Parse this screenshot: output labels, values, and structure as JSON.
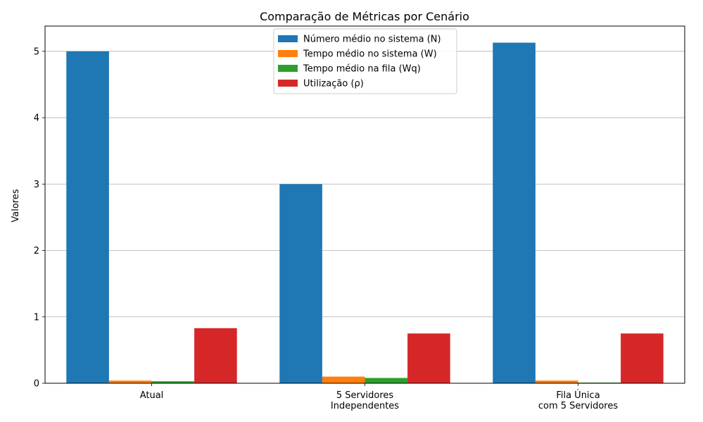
{
  "chart_data": {
    "type": "bar",
    "title": "Comparação de Métricas por Cenário",
    "xlabel": "",
    "ylabel": "Valores",
    "ylim": [
      0,
      5.38
    ],
    "yticks": [
      "0",
      "1",
      "2",
      "3",
      "4",
      "5"
    ],
    "grid": "y",
    "legend_position": "top-center",
    "categories": [
      [
        "Atual"
      ],
      [
        "5 Servidores",
        "Independentes"
      ],
      [
        "Fila Única",
        "com 5 Servidores"
      ]
    ],
    "series": [
      {
        "name": "Número médio no sistema (N)",
        "color": "#1f77b4",
        "values": [
          5.0,
          3.0,
          5.13
        ]
      },
      {
        "name": "Tempo médio no sistema (W)",
        "color": "#ff7f0e",
        "values": [
          0.04,
          0.1,
          0.04
        ]
      },
      {
        "name": "Tempo médio na fila (Wq)",
        "color": "#2ca02c",
        "values": [
          0.03,
          0.08,
          0.01
        ]
      },
      {
        "name": "Utilização (ρ)",
        "color": "#d62728",
        "values": [
          0.83,
          0.75,
          0.75
        ]
      }
    ]
  }
}
